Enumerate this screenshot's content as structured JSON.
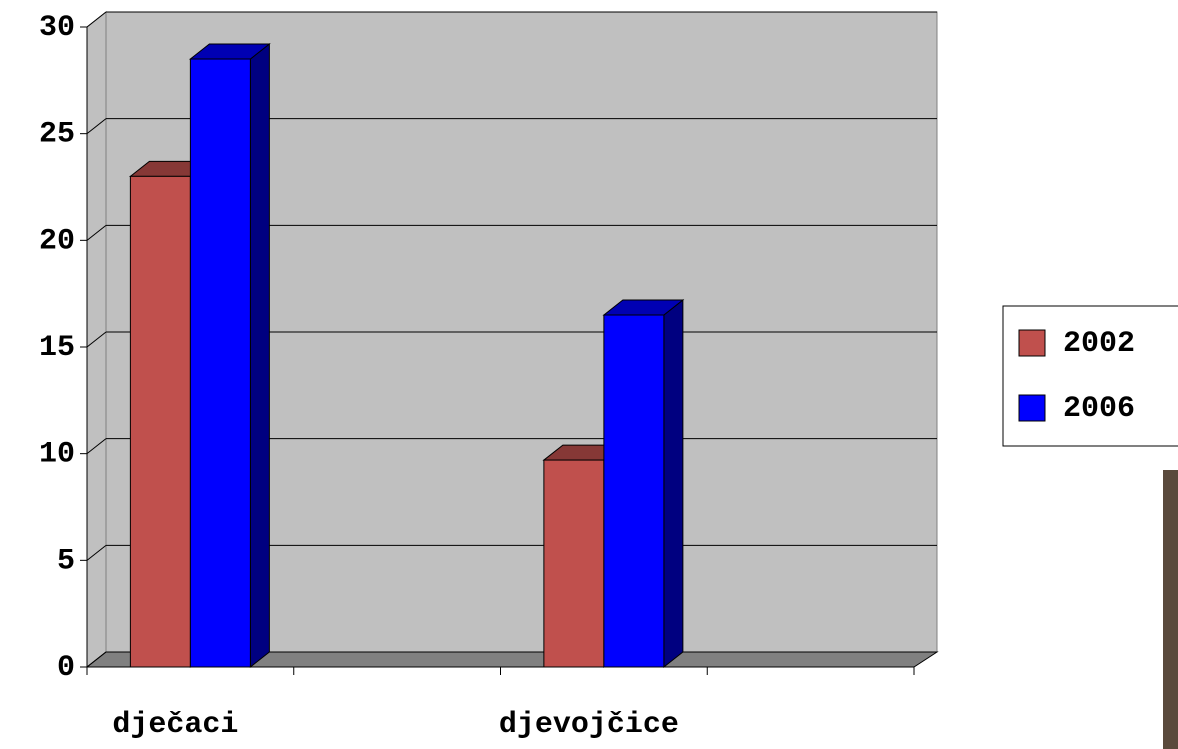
{
  "chart_data": {
    "type": "bar3d",
    "categories": [
      "dječaci",
      null,
      "djevojčice",
      null
    ],
    "series": [
      {
        "name": "2002",
        "color": "#c0504d",
        "values": [
          23,
          null,
          9.7,
          null
        ]
      },
      {
        "name": "2006",
        "color": "#0000ff",
        "values": [
          28.5,
          null,
          16.5,
          null
        ]
      }
    ],
    "ylim": [
      0,
      30
    ],
    "yticks": [
      0,
      5,
      10,
      15,
      20,
      25,
      30
    ],
    "grid": true,
    "legend": "right"
  }
}
